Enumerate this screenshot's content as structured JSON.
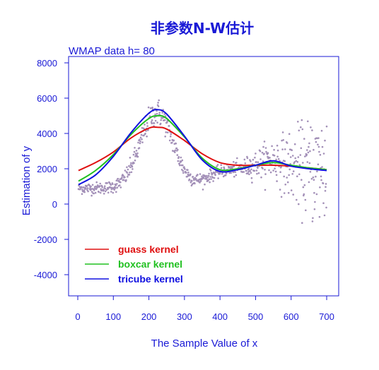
{
  "chart_data": {
    "type": "scatter",
    "title": "非参数N-W估计",
    "subtitle": "WMAP data h= 80",
    "xlabel": "The Sample Value of x",
    "ylabel": "Estimation of y",
    "xlim": [
      -10,
      715
    ],
    "ylim": [
      -5200,
      8200
    ],
    "xticks": [
      0,
      100,
      200,
      300,
      400,
      500,
      600,
      700
    ],
    "yticks": [
      -4000,
      -2000,
      0,
      2000,
      4000,
      6000,
      8000
    ],
    "grid": false,
    "legend_position": "bottom-left",
    "scatter": {
      "color": "#a390b8",
      "note": "noisy observations of a power spectrum, approx 700 points, n from 2 to 700"
    },
    "series": [
      {
        "name": "guass kernel",
        "color": "#e01010",
        "x": [
          2,
          50,
          100,
          150,
          200,
          225,
          250,
          300,
          350,
          400,
          450,
          500,
          550,
          600,
          650,
          700
        ],
        "y": [
          1900,
          2350,
          2950,
          3750,
          4300,
          4350,
          4250,
          3600,
          2850,
          2350,
          2200,
          2200,
          2200,
          2150,
          2050,
          1950
        ]
      },
      {
        "name": "boxcar kernel",
        "color": "#20c020",
        "x": [
          2,
          50,
          100,
          150,
          200,
          225,
          250,
          300,
          350,
          400,
          450,
          500,
          550,
          600,
          650,
          700
        ],
        "y": [
          1300,
          1900,
          2800,
          3950,
          4850,
          5000,
          4850,
          3800,
          2600,
          1950,
          2000,
          2200,
          2350,
          2200,
          2050,
          1950
        ]
      },
      {
        "name": "tricube kernel",
        "color": "#1010e0",
        "x": [
          2,
          50,
          100,
          150,
          200,
          225,
          250,
          300,
          350,
          400,
          450,
          500,
          550,
          600,
          650,
          700
        ],
        "y": [
          1100,
          1650,
          2700,
          4050,
          5150,
          5350,
          5100,
          3850,
          2500,
          1850,
          1950,
          2200,
          2450,
          2150,
          2000,
          1900
        ]
      }
    ]
  }
}
